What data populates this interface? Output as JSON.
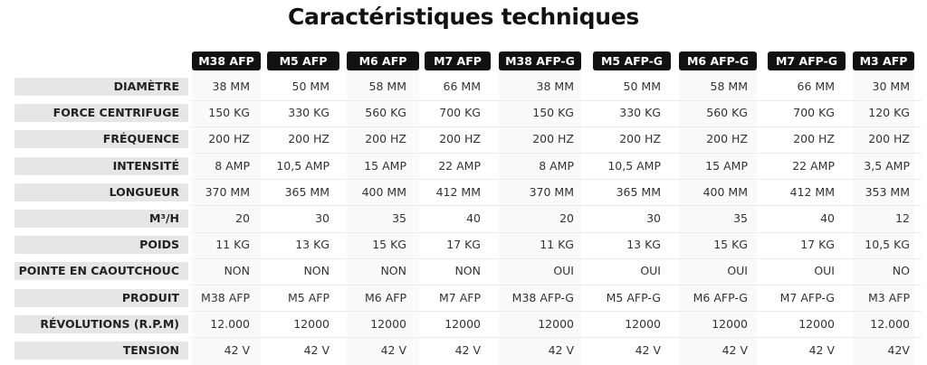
{
  "title": "Caractéristiques techniques",
  "table": {
    "columns": [
      "M38 AFP",
      "M5 AFP",
      "M6 AFP",
      "M7 AFP",
      "M38 AFP-G",
      "M5 AFP-G",
      "M6 AFP-G",
      "M7 AFP-G",
      "M3 AFP"
    ],
    "rows": [
      {
        "label": "DIAMÈTRE",
        "cells": [
          "38 MM",
          "50 MM",
          "58 MM",
          "66 MM",
          "38 MM",
          "50 MM",
          "58 MM",
          "66 MM",
          "30 MM"
        ]
      },
      {
        "label": "FORCE CENTRIFUGE",
        "cells": [
          "150 KG",
          "330 KG",
          "560 KG",
          "700 KG",
          "150 KG",
          "330 KG",
          "560 KG",
          "700 KG",
          "120 KG"
        ]
      },
      {
        "label": "FRÉQUENCE",
        "cells": [
          "200 HZ",
          "200 HZ",
          "200 HZ",
          "200 HZ",
          "200 HZ",
          "200 HZ",
          "200 HZ",
          "200 HZ",
          "200 HZ"
        ]
      },
      {
        "label": "INTENSITÉ",
        "cells": [
          "8 AMP",
          "10,5 AMP",
          "15 AMP",
          "22 AMP",
          "8 AMP",
          "10,5 AMP",
          "15 AMP",
          "22 AMP",
          "3,5 AMP"
        ]
      },
      {
        "label": "LONGUEUR",
        "cells": [
          "370 MM",
          "365 MM",
          "400 MM",
          "412 MM",
          "370 MM",
          "365 MM",
          "400 MM",
          "412 MM",
          "353 MM"
        ]
      },
      {
        "label": "M³/H",
        "cells": [
          "20",
          "30",
          "35",
          "40",
          "20",
          "30",
          "35",
          "40",
          "12"
        ]
      },
      {
        "label": "POIDS",
        "cells": [
          "11 KG",
          "13 KG",
          "15 KG",
          "17 KG",
          "11 KG",
          "13 KG",
          "15 KG",
          "17 KG",
          "10,5 KG"
        ]
      },
      {
        "label": "POINTE EN CAOUTCHOUC",
        "cells": [
          "NON",
          "NON",
          "NON",
          "NON",
          "OUI",
          "OUI",
          "OUI",
          "OUI",
          "NO"
        ]
      },
      {
        "label": "PRODUIT",
        "cells": [
          "M38 AFP",
          "M5 AFP",
          "M6 AFP",
          "M7 AFP",
          "M38 AFP-G",
          "M5 AFP-G",
          "M6 AFP-G",
          "M7 AFP-G",
          "M3 AFP"
        ]
      },
      {
        "label": "RÉVOLUTIONS (R.P.M)",
        "cells": [
          "12.000",
          "12000",
          "12000",
          "12000",
          "12000",
          "12000",
          "12000",
          "12000",
          "12.000"
        ]
      },
      {
        "label": "TENSION",
        "cells": [
          "42 V",
          "42 V",
          "42 V",
          "42 V",
          "42 V",
          "42 V",
          "42 V",
          "42 V",
          "42V"
        ]
      }
    ]
  }
}
